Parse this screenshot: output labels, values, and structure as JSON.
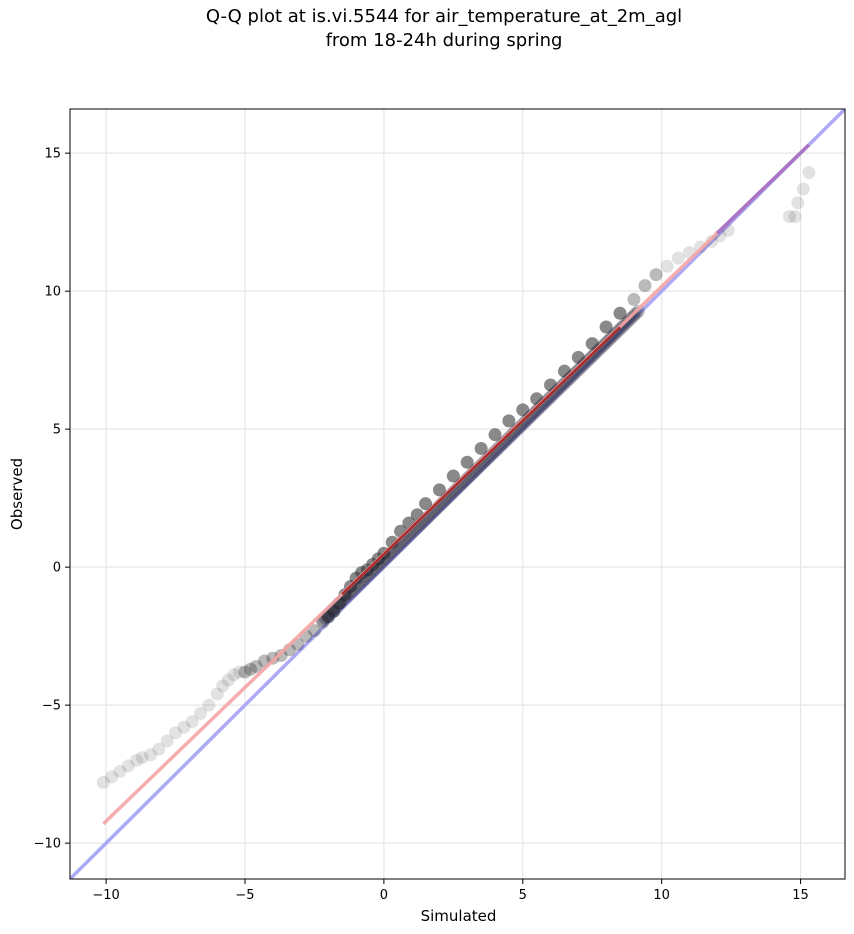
{
  "chart_data": {
    "type": "scatter",
    "title": "Q-Q plot at is.vi.5544 for air_temperature_at_2m_agl",
    "subtitle": "from 18-24h during spring",
    "xlabel": "Simulated",
    "ylabel": "Observed",
    "xlim": [
      -11.3,
      16.6
    ],
    "ylim": [
      -11.3,
      16.6
    ],
    "xticks": [
      -10,
      -5,
      0,
      5,
      10,
      15
    ],
    "yticks": [
      -10,
      -5,
      0,
      5,
      10,
      15
    ],
    "xtick_labels": [
      "−10",
      "−5",
      "0",
      "5",
      "10",
      "15"
    ],
    "ytick_labels": [
      "−10",
      "−5",
      "0",
      "5",
      "10",
      "15"
    ],
    "grid": true,
    "reference_line": {
      "x": [
        -11.3,
        16.6
      ],
      "y": [
        -11.3,
        16.6
      ],
      "color": "#aaaaf5"
    },
    "fit_line": {
      "x": [
        -10.1,
        15.3
      ],
      "y": [
        -9.3,
        15.3
      ],
      "color": "#f4a4a4"
    },
    "quantile_points": {
      "x": [
        -10.1,
        -9.8,
        -9.5,
        -9.2,
        -8.9,
        -8.7,
        -8.4,
        -8.1,
        -7.8,
        -7.5,
        -7.2,
        -6.9,
        -6.6,
        -6.3,
        -6.0,
        -5.8,
        -5.6,
        -5.4,
        -5.2,
        -5.0,
        -4.8,
        -4.6,
        -4.3,
        -4.0,
        -3.7,
        -3.4,
        -3.1,
        -2.8,
        -2.5,
        -2.2,
        -2.0,
        -1.8,
        -1.6,
        -1.4,
        -1.2,
        -1.0,
        -0.8,
        -0.6,
        -0.4,
        -0.2,
        0.0,
        0.3,
        0.6,
        0.9,
        1.2,
        1.5,
        2.0,
        2.5,
        3.0,
        3.5,
        4.0,
        4.5,
        5.0,
        5.5,
        6.0,
        6.5,
        7.0,
        7.5,
        8.0,
        8.5,
        9.0,
        9.4,
        9.8,
        10.2,
        10.6,
        11.0,
        11.4,
        11.8,
        12.1,
        12.4,
        14.6,
        14.8,
        14.9,
        15.1,
        15.3
      ],
      "y": [
        -7.8,
        -7.6,
        -7.4,
        -7.2,
        -7.0,
        -6.9,
        -6.8,
        -6.6,
        -6.3,
        -6.0,
        -5.8,
        -5.6,
        -5.3,
        -5.0,
        -4.6,
        -4.3,
        -4.1,
        -3.9,
        -3.8,
        -3.8,
        -3.7,
        -3.6,
        -3.4,
        -3.3,
        -3.2,
        -3.0,
        -2.8,
        -2.5,
        -2.3,
        -2.0,
        -1.8,
        -1.6,
        -1.3,
        -1.0,
        -0.7,
        -0.4,
        -0.2,
        -0.1,
        0.1,
        0.3,
        0.5,
        0.9,
        1.3,
        1.6,
        1.9,
        2.3,
        2.8,
        3.3,
        3.8,
        4.3,
        4.8,
        5.3,
        5.7,
        6.1,
        6.6,
        7.1,
        7.6,
        8.1,
        8.7,
        9.2,
        9.7,
        10.2,
        10.6,
        10.9,
        11.2,
        11.4,
        11.6,
        11.8,
        12.0,
        12.2,
        12.7,
        12.7,
        13.2,
        13.7,
        14.3
      ],
      "color": "#3a3a3a"
    }
  }
}
